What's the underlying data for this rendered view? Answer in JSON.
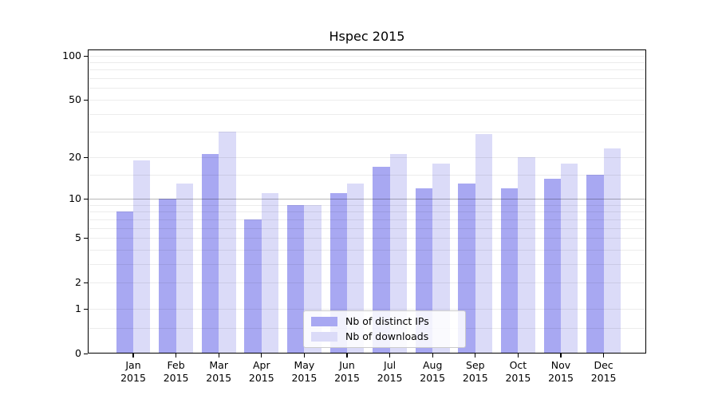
{
  "chart_data": {
    "type": "bar",
    "title": "Hspec 2015",
    "categories": [
      "Jan",
      "Feb",
      "Mar",
      "Apr",
      "May",
      "Jun",
      "Jul",
      "Aug",
      "Sep",
      "Oct",
      "Nov",
      "Dec"
    ],
    "x_year_line": "2015",
    "series": [
      {
        "name": "Nb of distinct IPs",
        "color": "#a8a8f2",
        "values": [
          8,
          10,
          21,
          7,
          9,
          11,
          17,
          12,
          13,
          12,
          14,
          15
        ]
      },
      {
        "name": "Nb of downloads",
        "color": "#dbdbf8",
        "values": [
          19,
          13,
          30,
          11,
          9,
          13,
          21,
          18,
          29,
          20,
          18,
          23
        ]
      }
    ],
    "xlabel": "",
    "ylabel": "",
    "y_axis": {
      "scale": "log1p",
      "tick_values": [
        0,
        1,
        2,
        5,
        10,
        20,
        50,
        100
      ],
      "tick_labels": [
        "0",
        "1",
        "2",
        "5",
        "10",
        "20",
        "50",
        "100"
      ],
      "ylim": [
        0,
        110
      ]
    },
    "gridlines": {
      "on": true,
      "minor_values": [
        0.5,
        1,
        2,
        3,
        4,
        5,
        6,
        7,
        8,
        9,
        15,
        20,
        30,
        40,
        50,
        60,
        70,
        80,
        90,
        100
      ],
      "emphasized_value": 10
    },
    "legend": {
      "position": "lower-center",
      "entries": [
        "Nb of distinct IPs",
        "Nb of downloads"
      ]
    },
    "colors": {
      "plot_border": "#000000",
      "background": "#ffffff",
      "series_dark": "#a8a8f2",
      "series_light": "#dbdbf8"
    }
  }
}
